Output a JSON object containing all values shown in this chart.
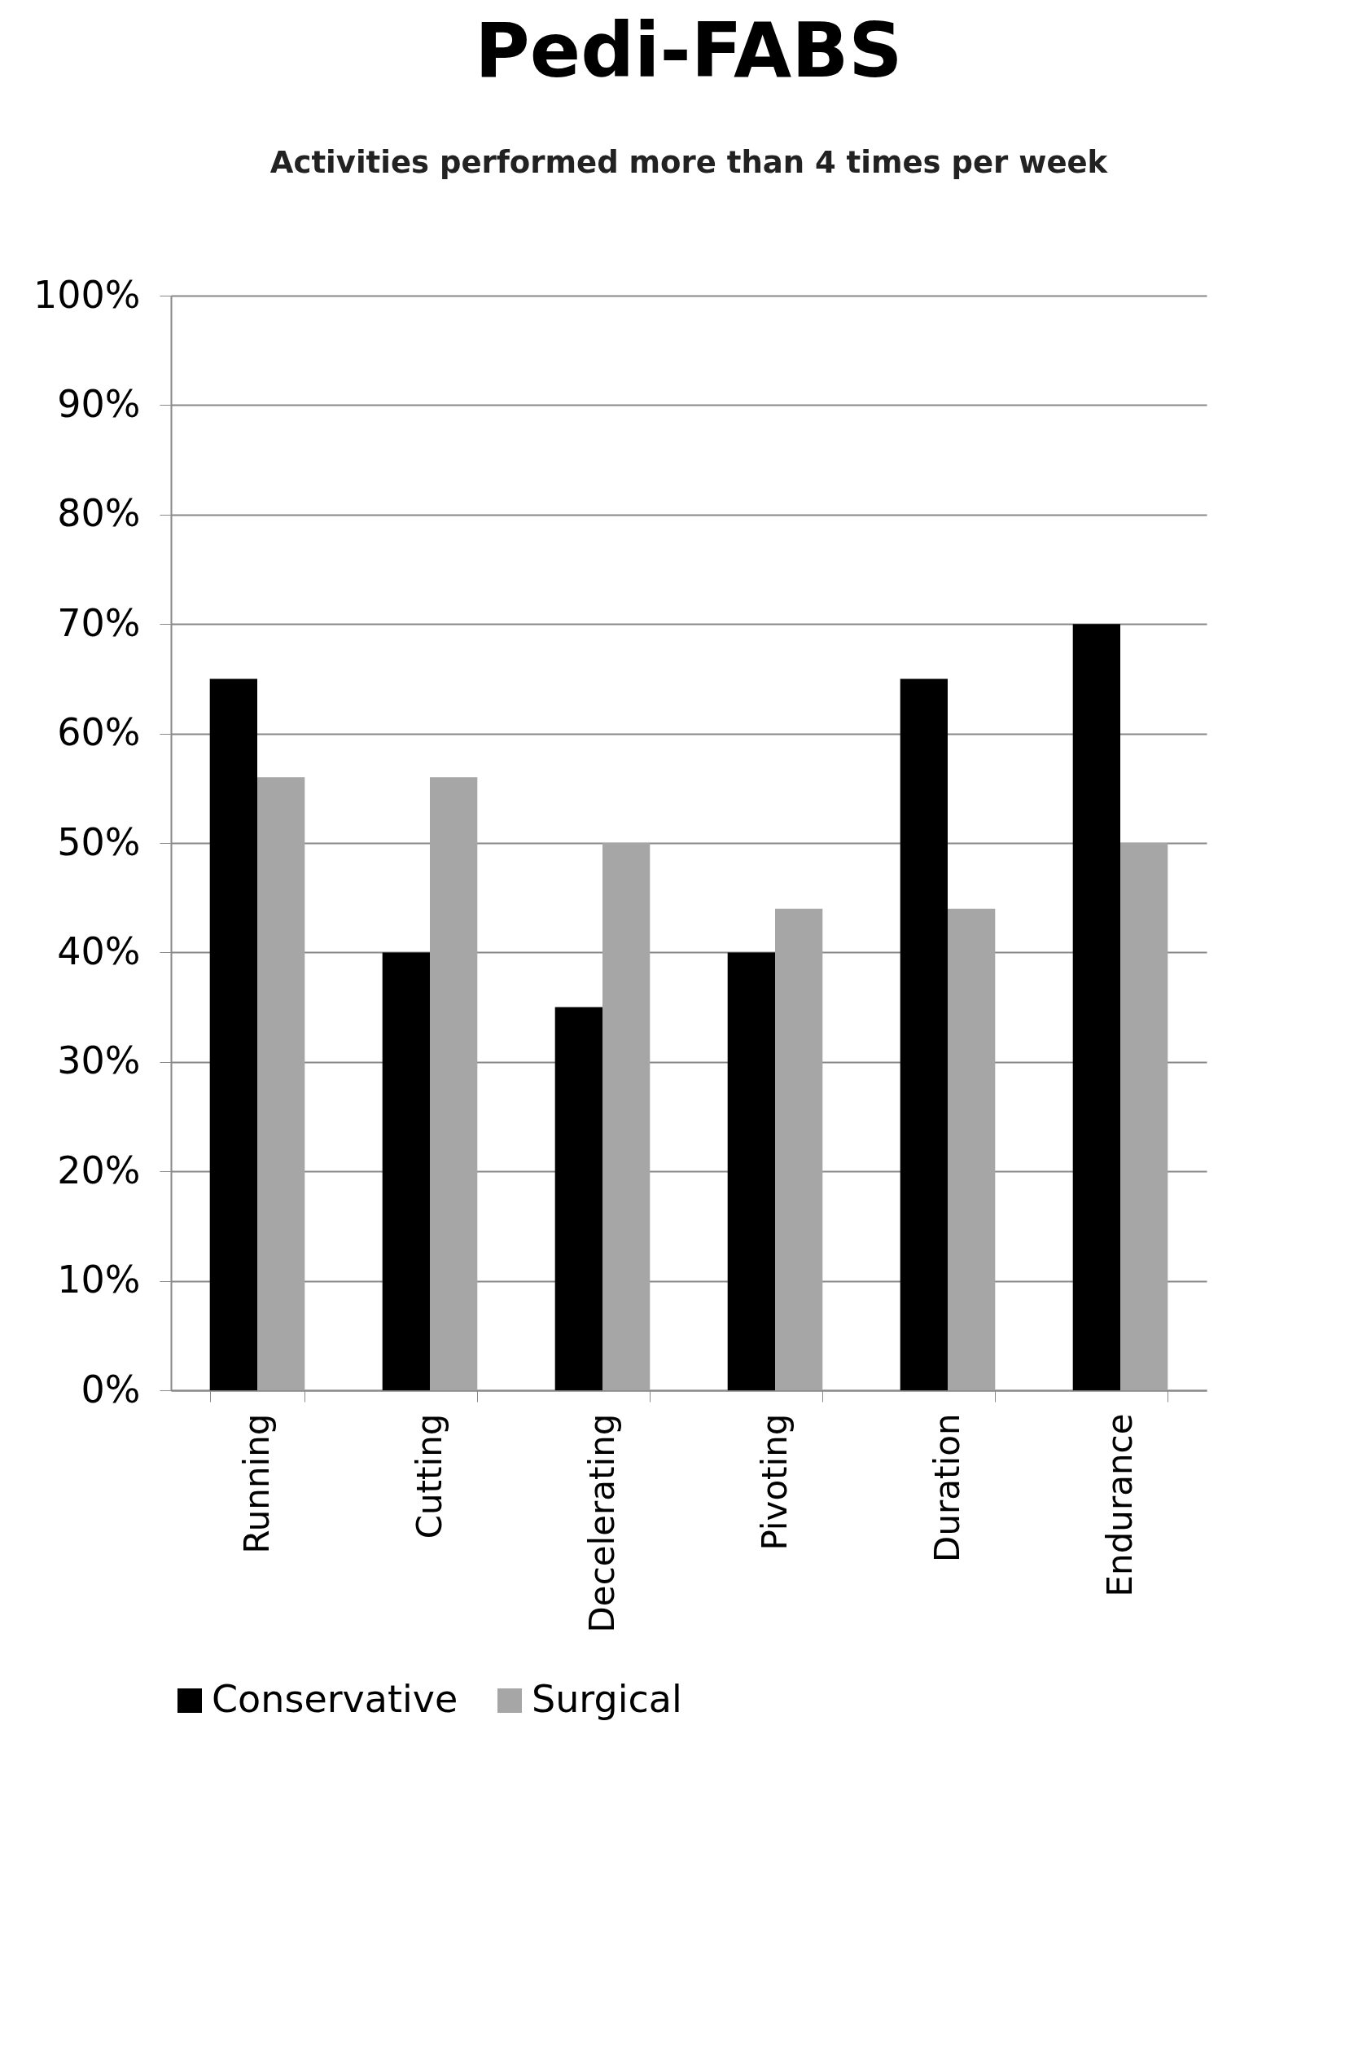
{
  "chart_data": {
    "type": "bar",
    "title": "Pedi-FABS",
    "subtitle": "Activities performed more than 4 times per week",
    "categories": [
      "Running",
      "Cutting",
      "Decelerating",
      "Pivoting",
      "Duration",
      "Endurance"
    ],
    "series": [
      {
        "name": "Conservative",
        "color": "#000000",
        "values": [
          65,
          40,
          35,
          40,
          65,
          70
        ]
      },
      {
        "name": "Surgical",
        "color": "#a6a6a6",
        "values": [
          56,
          56,
          50,
          44,
          44,
          50
        ]
      }
    ],
    "ylim": [
      0,
      100
    ],
    "yticks": [
      {
        "value": 0,
        "label": "0%"
      },
      {
        "value": 10,
        "label": "10%"
      },
      {
        "value": 20,
        "label": "20%"
      },
      {
        "value": 30,
        "label": "30%"
      },
      {
        "value": 40,
        "label": "40%"
      },
      {
        "value": 50,
        "label": "50%"
      },
      {
        "value": 60,
        "label": "60%"
      },
      {
        "value": 70,
        "label": "70%"
      },
      {
        "value": 80,
        "label": "80%"
      },
      {
        "value": 90,
        "label": "90%"
      },
      {
        "value": 100,
        "label": "100%"
      }
    ],
    "grid": "y",
    "legend": "bottom"
  }
}
